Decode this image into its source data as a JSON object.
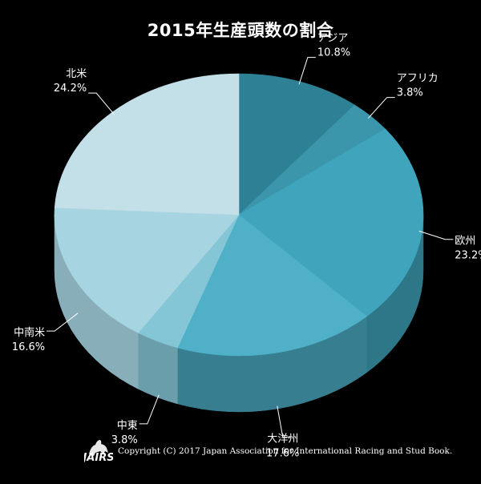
{
  "chart_data": {
    "type": "pie",
    "title": "2015年生産頭数の割合",
    "slices": [
      {
        "label": "アジア",
        "value": 10.8,
        "value_label": "10.8%",
        "color": "#2E8094",
        "side": "#1E5A68"
      },
      {
        "label": "アフリカ",
        "value": 3.8,
        "value_label": "3.8%",
        "color": "#3B96AC",
        "side": "#286C7C"
      },
      {
        "label": "欧州",
        "value": 23.2,
        "value_label": "23.2%",
        "color": "#3FA4BC",
        "side": "#2D7789"
      },
      {
        "label": "大洋州",
        "value": 17.6,
        "value_label": "17.6%",
        "color": "#4FB0C7",
        "side": "#367E90"
      },
      {
        "label": "中東",
        "value": 3.8,
        "value_label": "3.8%",
        "color": "#84C6D6",
        "side": "#6A9EAB"
      },
      {
        "label": "中南米",
        "value": 16.6,
        "value_label": "16.6%",
        "color": "#A6D4E0",
        "side": "#87AEB9"
      },
      {
        "label": "北米",
        "value": 24.2,
        "value_label": "24.2%",
        "color": "#C3DFE8",
        "side": "#A3BFC8"
      }
    ],
    "start_angle_deg": -90,
    "direction": "clockwise",
    "style": "3d"
  },
  "footer": {
    "copyright": "Copyright (C) 2017 Japan Association for International Racing and Stud Book.",
    "logo_text": "JAIRS"
  }
}
